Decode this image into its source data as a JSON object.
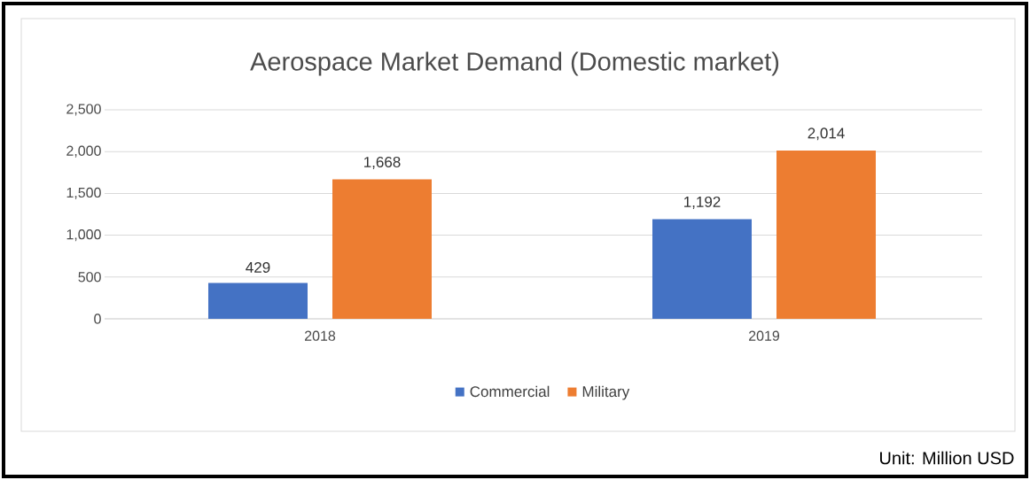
{
  "chart_data": {
    "type": "bar",
    "title": "Aerospace Market Demand (Domestic market)",
    "categories": [
      "2018",
      "2019"
    ],
    "series": [
      {
        "name": "Commercial",
        "color": "#4472c4",
        "values": [
          429,
          1192
        ],
        "value_labels": [
          "429",
          "1,192"
        ]
      },
      {
        "name": "Military",
        "color": "#ed7d31",
        "values": [
          1668,
          2014
        ],
        "value_labels": [
          "1,668",
          "2,014"
        ]
      }
    ],
    "ylim": [
      0,
      2500
    ],
    "yticks": [
      {
        "value": 0,
        "label": "0"
      },
      {
        "value": 500,
        "label": "500"
      },
      {
        "value": 1000,
        "label": "1,000"
      },
      {
        "value": 1500,
        "label": "1,500"
      },
      {
        "value": 2000,
        "label": "2,000"
      },
      {
        "value": 2500,
        "label": "2,500"
      }
    ],
    "grid": "y",
    "legend": "bottom",
    "annotations": [
      "Unit: Million USD"
    ]
  }
}
